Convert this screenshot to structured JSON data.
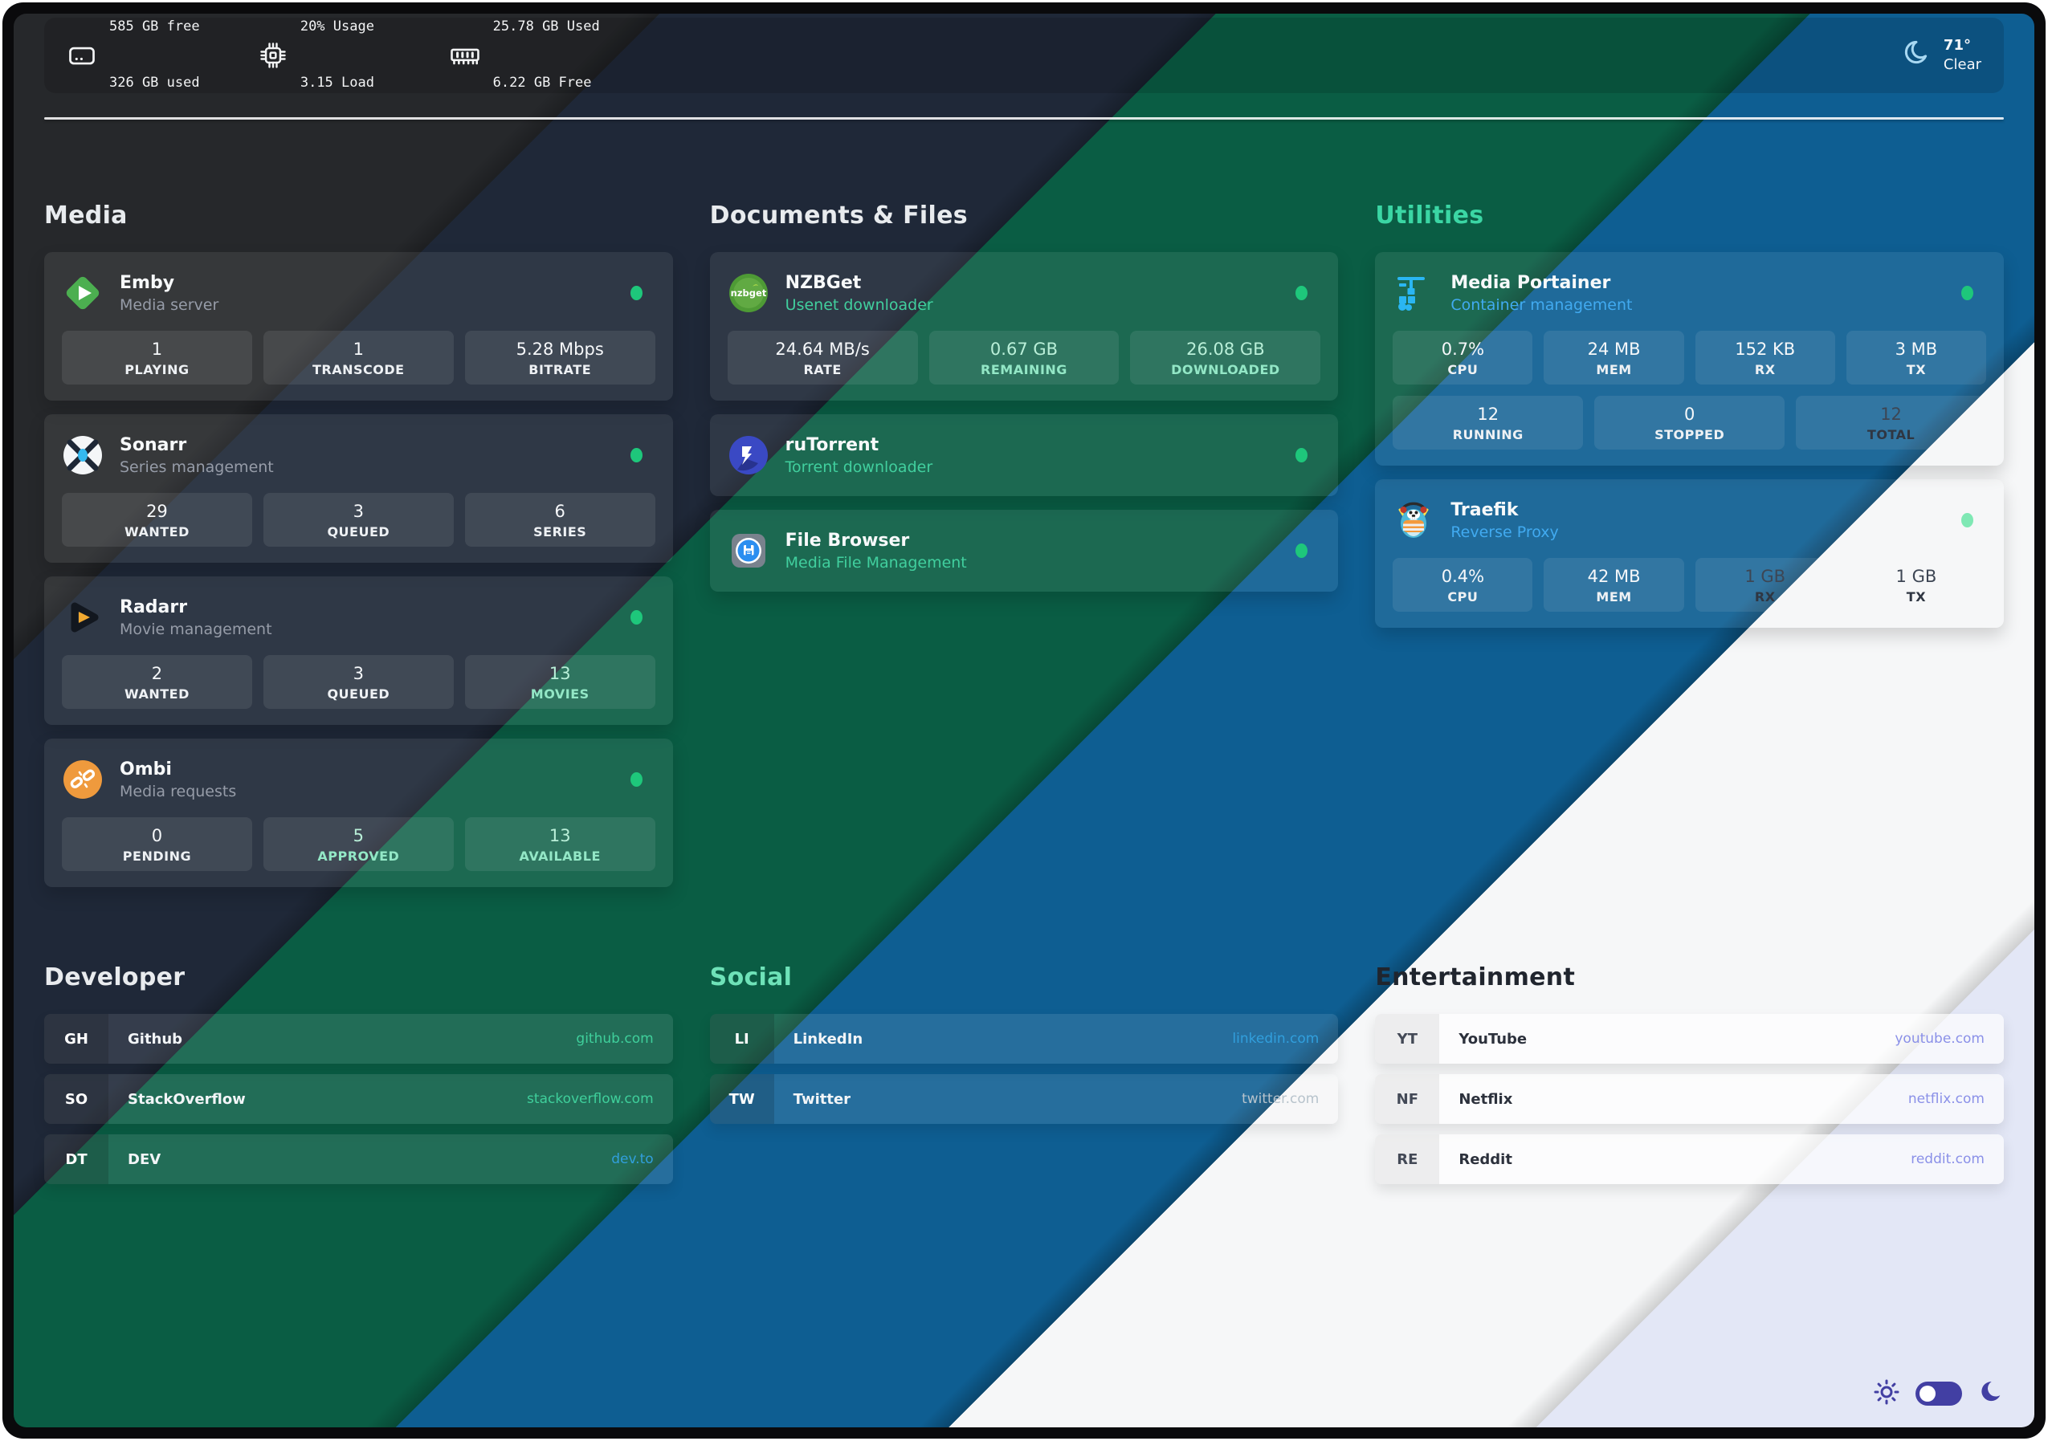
{
  "status_bar": {
    "disk": {
      "line1": "585 GB free",
      "line2": "326 GB used"
    },
    "cpu": {
      "line1": "20% Usage",
      "line2": "3.15 Load"
    },
    "memory": {
      "line1": "25.78 GB Used",
      "line2": "6.22 GB Free"
    },
    "weather": {
      "temperature": "71°",
      "condition": "Clear"
    }
  },
  "service_sections": [
    {
      "title": "Media",
      "heading_tone": "light",
      "services": [
        {
          "name": "Emby",
          "subtitle": "Media server",
          "subtitle_tone": "muted",
          "icon": "emby",
          "online": true,
          "dot_tone": "bright",
          "stat_rows": [
            [
              {
                "value": "1",
                "label": "PLAYING"
              },
              {
                "value": "1",
                "label": "TRANSCODE"
              },
              {
                "value": "5.28 Mbps",
                "label": "BITRATE"
              }
            ]
          ]
        },
        {
          "name": "Sonarr",
          "subtitle": "Series management",
          "subtitle_tone": "muted",
          "icon": "sonarr",
          "online": true,
          "dot_tone": "bright",
          "stat_rows": [
            [
              {
                "value": "29",
                "label": "WANTED"
              },
              {
                "value": "3",
                "label": "QUEUED"
              },
              {
                "value": "6",
                "label": "SERIES"
              }
            ]
          ]
        },
        {
          "name": "Radarr",
          "subtitle": "Movie management",
          "subtitle_tone": "muted",
          "icon": "radarr",
          "online": true,
          "dot_tone": "bright",
          "stat_rows": [
            [
              {
                "value": "2",
                "label": "WANTED"
              },
              {
                "value": "3",
                "label": "QUEUED"
              },
              {
                "value": "13",
                "label": "MOVIES",
                "tone": "mint-light"
              }
            ]
          ]
        },
        {
          "name": "Ombi",
          "subtitle": "Media requests",
          "subtitle_tone": "muted",
          "icon": "ombi",
          "online": true,
          "dot_tone": "bright",
          "stat_rows": [
            [
              {
                "value": "0",
                "label": "PENDING"
              },
              {
                "value": "5",
                "label": "APPROVED",
                "tone": "mint-light"
              },
              {
                "value": "13",
                "label": "AVAILABLE",
                "tone": "mint-light"
              }
            ]
          ]
        }
      ]
    },
    {
      "title": "Documents & Files",
      "heading_tone": "light",
      "services": [
        {
          "name": "NZBGet",
          "subtitle": "Usenet downloader",
          "subtitle_tone": "mint",
          "icon": "nzbget",
          "online": true,
          "dot_tone": "bright",
          "stat_rows": [
            [
              {
                "value": "24.64 MB/s",
                "label": "RATE"
              },
              {
                "value": "0.67 GB",
                "label": "REMAINING",
                "tone": "mint-light"
              },
              {
                "value": "26.08 GB",
                "label": "DOWNLOADED",
                "tone": "mint-light"
              }
            ]
          ]
        },
        {
          "name": "ruTorrent",
          "subtitle": "Torrent downloader",
          "subtitle_tone": "mint",
          "icon": "rutorrent",
          "online": true,
          "dot_tone": "bright",
          "stat_rows": []
        },
        {
          "name": "File Browser",
          "subtitle": "Media File Management",
          "subtitle_tone": "mint",
          "icon": "filebrowser",
          "online": true,
          "dot_tone": "bright",
          "stat_rows": []
        }
      ]
    },
    {
      "title": "Utilities",
      "heading_tone": "mint",
      "services": [
        {
          "name": "Media Portainer",
          "subtitle": "Container management",
          "subtitle_tone": "sky",
          "icon": "portainer",
          "online": true,
          "dot_tone": "bright",
          "stat_rows": [
            [
              {
                "value": "0.7%",
                "label": "CPU"
              },
              {
                "value": "24 MB",
                "label": "MEM"
              },
              {
                "value": "152 KB",
                "label": "RX"
              },
              {
                "value": "3 MB",
                "label": "TX"
              }
            ],
            [
              {
                "value": "12",
                "label": "RUNNING"
              },
              {
                "value": "0",
                "label": "STOPPED"
              },
              {
                "value": "12",
                "label": "TOTAL",
                "tone": "dark"
              }
            ]
          ]
        },
        {
          "name": "Traefik",
          "subtitle": "Reverse Proxy",
          "subtitle_tone": "sky",
          "icon": "traefik",
          "online": true,
          "dot_tone": "pale",
          "stat_rows": [
            [
              {
                "value": "0.4%",
                "label": "CPU"
              },
              {
                "value": "42 MB",
                "label": "MEM"
              },
              {
                "value": "1 GB",
                "label": "RX",
                "tone": "dark"
              },
              {
                "value": "1 GB",
                "label": "TX",
                "tone": "dark"
              }
            ]
          ]
        }
      ]
    }
  ],
  "bookmark_sections": [
    {
      "title": "Developer",
      "heading_tone": "light",
      "links": [
        {
          "abbr": "GH",
          "name": "Github",
          "url": "github.com",
          "url_tone": "mint",
          "row_tone": "dark"
        },
        {
          "abbr": "SO",
          "name": "StackOverflow",
          "url": "stackoverflow.com",
          "url_tone": "mint",
          "row_tone": "dark"
        },
        {
          "abbr": "DT",
          "name": "DEV",
          "url": "dev.to",
          "url_tone": "sky",
          "row_tone": "dark"
        }
      ]
    },
    {
      "title": "Social",
      "heading_tone": "mint2",
      "links": [
        {
          "abbr": "LI",
          "name": "LinkedIn",
          "url": "linkedin.com",
          "url_tone": "sky",
          "row_tone": "dark"
        },
        {
          "abbr": "TW",
          "name": "Twitter",
          "url": "twitter.com",
          "url_tone": "muted",
          "row_tone": "dark"
        }
      ]
    },
    {
      "title": "Entertainment",
      "heading_tone": "dark",
      "links": [
        {
          "abbr": "YT",
          "name": "YouTube",
          "url": "youtube.com",
          "url_tone": "indigo",
          "row_tone": "light"
        },
        {
          "abbr": "NF",
          "name": "Netflix",
          "url": "netflix.com",
          "url_tone": "indigo",
          "row_tone": "light"
        },
        {
          "abbr": "RE",
          "name": "Reddit",
          "url": "reddit.com",
          "url_tone": "indigo",
          "row_tone": "light"
        }
      ]
    }
  ],
  "theme_colors": {
    "accent_mint": "#3fd3a0",
    "accent_sky": "#41aaf0",
    "status_online": "#1ec77b",
    "status_online_pale": "#7fe8b4",
    "toggle_indigo": "#423fa3",
    "stripe_charcoal": "#26282b",
    "stripe_navy": "#1f2838",
    "stripe_green": "#0a5d44",
    "stripe_blue": "#0e5e92",
    "stripe_white": "#f6f7f8",
    "stripe_lavender": "#e3e7f6"
  }
}
